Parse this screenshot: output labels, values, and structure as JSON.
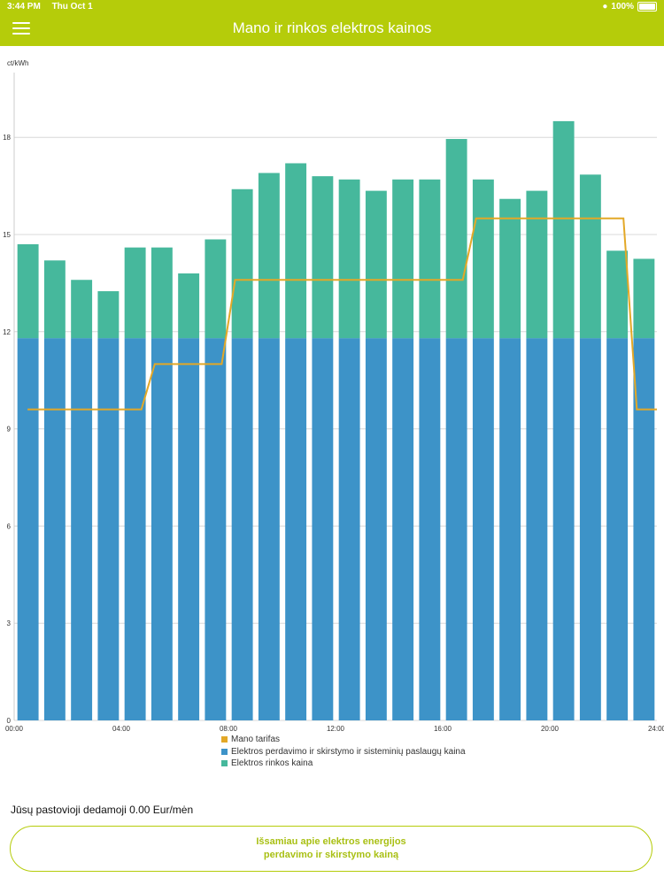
{
  "status_bar": {
    "time": "3:44 PM",
    "date": "Thu Oct 1",
    "battery": "100%"
  },
  "header": {
    "title": "Mano ir rinkos elektros kainos",
    "menu_icon": "hamburger-icon"
  },
  "colors": {
    "accent": "#b5cc0a",
    "distribution": "#3d93c8",
    "market": "#46b89c",
    "tariff": "#e3a827"
  },
  "chart_data": {
    "type": "bar",
    "stacked": true,
    "ylabel": "ct/kWh",
    "ylim": [
      0,
      20
    ],
    "yticks": [
      "0",
      "3",
      "6",
      "9",
      "12",
      "15",
      "18"
    ],
    "xtick_labels": [
      "00:00",
      "04:00",
      "08:00",
      "12:00",
      "16:00",
      "20:00",
      "24:00"
    ],
    "grid": true,
    "series": [
      {
        "name": "Elektros perdavimo ir skirstymo ir sisteminių paslaugų kaina",
        "values": [
          11.8,
          11.8,
          11.8,
          11.8,
          11.8,
          11.8,
          11.8,
          11.8,
          11.8,
          11.8,
          11.8,
          11.8,
          11.8,
          11.8,
          11.8,
          11.8,
          11.8,
          11.8,
          11.8,
          11.8,
          11.8,
          11.8,
          11.8,
          11.8
        ]
      },
      {
        "name": "Elektros rinkos kaina",
        "values": [
          2.9,
          2.4,
          1.8,
          1.45,
          2.8,
          2.8,
          2.0,
          3.05,
          4.6,
          5.1,
          5.4,
          5.0,
          4.9,
          4.55,
          4.9,
          4.9,
          6.15,
          4.9,
          4.3,
          4.55,
          6.7,
          5.05,
          2.7,
          2.45
        ]
      },
      {
        "name": "Mano tarifas",
        "type": "line",
        "values": [
          9.6,
          9.6,
          9.6,
          9.6,
          9.6,
          11.0,
          11.0,
          11.0,
          13.6,
          13.6,
          13.6,
          13.6,
          13.6,
          13.6,
          13.6,
          13.6,
          13.6,
          15.5,
          15.5,
          15.5,
          15.5,
          15.5,
          15.5,
          9.6
        ]
      }
    ]
  },
  "legend": [
    {
      "label": "Mano tarifas",
      "color": "#e3a827"
    },
    {
      "label": "Elektros perdavimo ir skirstymo ir sisteminių paslaugų kaina",
      "color": "#3d93c8"
    },
    {
      "label": "Elektros rinkos kaina",
      "color": "#46b89c"
    }
  ],
  "fixed_fee": "Jūsų pastovioji dedamoji 0.00 Eur/mėn",
  "info_button": {
    "line1": "Išsamiau apie elektros energijos",
    "line2": "perdavimo ir skirstymo kainą"
  }
}
